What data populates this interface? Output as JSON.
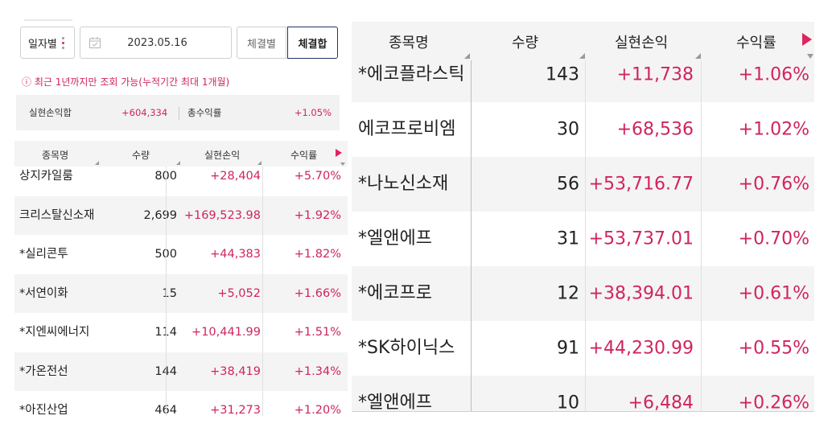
{
  "left": {
    "filters": {
      "mode_label": "일자별",
      "date": "2023.05.16",
      "tab_inactive": "체결별",
      "tab_active": "체결합"
    },
    "notice": "ⓘ 최근 1년까지만 조회 가능(누적기간 최대 1개월)",
    "summary": {
      "realized_label": "실현손익합",
      "realized_value": "+604,334",
      "total_rate_label": "총수익률",
      "total_rate_value": "+1.05%"
    },
    "headers": [
      "종목명",
      "수량",
      "실현손익",
      "수익률"
    ],
    "rows": [
      {
        "name": "상지카일룸",
        "qty": "800",
        "profit": "+28,404",
        "rate": "+5.70%"
      },
      {
        "name": "크리스탈신소재",
        "qty": "2,699",
        "profit": "+169,523.98",
        "rate": "+1.92%"
      },
      {
        "name": "*실리콘투",
        "qty": "500",
        "profit": "+44,383",
        "rate": "+1.82%"
      },
      {
        "name": "*서연이화",
        "qty": "15",
        "profit": "+5,052",
        "rate": "+1.66%"
      },
      {
        "name": "*지엔씨에너지",
        "qty": "114",
        "profit": "+10,441.99",
        "rate": "+1.51%"
      },
      {
        "name": "*가온전선",
        "qty": "144",
        "profit": "+38,419",
        "rate": "+1.34%"
      },
      {
        "name": "*아진산업",
        "qty": "464",
        "profit": "+31,273",
        "rate": "+1.20%"
      }
    ]
  },
  "right": {
    "headers": [
      "종목명",
      "수량",
      "실현손익",
      "수익률"
    ],
    "rows": [
      {
        "name": "*에코플라스틱",
        "qty": "143",
        "profit": "+11,738",
        "rate": "+1.06%"
      },
      {
        "name": "에코프로비엠",
        "qty": "30",
        "profit": "+68,536",
        "rate": "+1.02%"
      },
      {
        "name": "*나노신소재",
        "qty": "56",
        "profit": "+53,716.77",
        "rate": "+0.76%"
      },
      {
        "name": "*엘앤에프",
        "qty": "31",
        "profit": "+53,737.01",
        "rate": "+0.70%"
      },
      {
        "name": "*에코프로",
        "qty": "12",
        "profit": "+38,394.01",
        "rate": "+0.61%"
      },
      {
        "name": "*SK하이닉스",
        "qty": "91",
        "profit": "+44,230.99",
        "rate": "+0.55%"
      },
      {
        "name": "*엘앤에프",
        "qty": "10",
        "profit": "+6,484",
        "rate": "+0.26%"
      }
    ]
  },
  "colors": {
    "accent": "#d0245e",
    "navy": "#26336e",
    "row_alt": "#f4f4f4"
  }
}
